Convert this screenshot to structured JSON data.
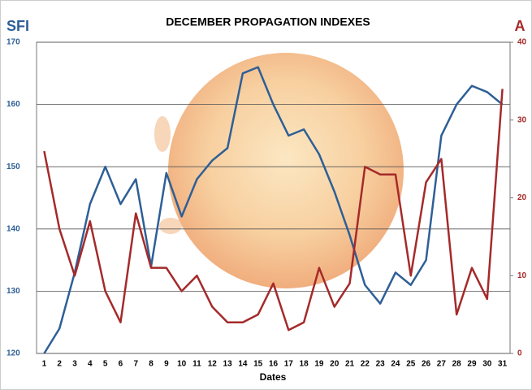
{
  "chart_data": {
    "type": "line",
    "title": "DECEMBER PROPAGATION  INDEXES",
    "x_label": "Dates",
    "categories": [
      "1",
      "2",
      "3",
      "4",
      "5",
      "6",
      "7",
      "8",
      "9",
      "10",
      "11",
      "12",
      "13",
      "14",
      "15",
      "16",
      "17",
      "18",
      "19",
      "20",
      "21",
      "22",
      "23",
      "24",
      "25",
      "26",
      "27",
      "28",
      "29",
      "30",
      "31"
    ],
    "series": [
      {
        "name": "SFI",
        "color": "#2e5f96",
        "values": [
          120,
          124,
          133,
          144,
          150,
          144,
          148,
          134,
          149,
          142,
          148,
          151,
          153,
          165,
          166,
          160,
          155,
          156,
          152,
          146,
          139,
          131,
          128,
          133,
          131,
          135,
          155,
          160,
          163,
          162,
          160
        ]
      },
      {
        "name": "A",
        "color": "#a52a2a",
        "axis": "y2",
        "values": [
          26,
          16,
          10,
          17,
          8,
          4,
          18,
          11,
          11,
          8,
          10,
          6,
          4,
          4,
          5,
          9,
          3,
          4,
          11,
          6,
          9,
          24,
          23,
          23,
          10,
          22,
          25,
          5,
          11,
          7,
          34
        ]
      }
    ],
    "ylim": [
      120,
      170
    ],
    "yticks": [
      120,
      130,
      140,
      150,
      160,
      170
    ],
    "y2lim": [
      0,
      40
    ],
    "y2ticks": [
      0,
      10,
      20,
      30,
      40
    ],
    "grid": true
  }
}
